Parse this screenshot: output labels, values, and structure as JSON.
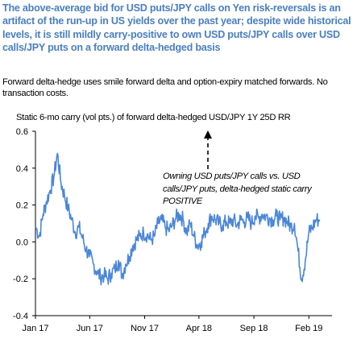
{
  "headline": "The above-average bid for USD puts/JPY calls on Yen risk-reversals is an artifact of the run-up in US yields over the past year; despite wide historical levels, it is still mildly carry-positive to own USD puts/JPY calls over USD calls/JPY puts on a forward delta-hedged basis",
  "subline": "Forward delta-hedge uses smile forward delta and option-expiry matched forwards. No transaction costs.",
  "colors": {
    "headline": "#4a7fbf",
    "line": "#4a86d8",
    "axis": "#000000"
  },
  "chart_data": {
    "type": "line",
    "title": "Static 6-mo carry (vol pts.) of forward delta-hedged USD/JPY 1Y 25D RR",
    "xlabel": "",
    "ylabel": "",
    "ylim": [
      -0.4,
      0.6
    ],
    "yticks": [
      -0.4,
      -0.2,
      0.0,
      0.2,
      0.4,
      0.6
    ],
    "ytick_labels": [
      "-0.4",
      "-0.2",
      "0.0",
      "0.2",
      "0.4",
      "0.6"
    ],
    "xlim": [
      "2017-01-01",
      "2019-03-15"
    ],
    "xticks": [
      "2017-01-01",
      "2017-06-01",
      "2017-11-01",
      "2018-04-01",
      "2018-09-01",
      "2019-02-01"
    ],
    "xtick_labels": [
      "Jan 17",
      "Jun 17",
      "Nov 17",
      "Apr 18",
      "Sep 18",
      "Feb 19"
    ],
    "grid": false,
    "legend": "none",
    "annotation": "Owning USD puts/JPY calls vs. USD calls/JPY puts, delta-hedged static carry POSITIVE",
    "series": [
      {
        "x": [
          "2017-01-02",
          "2017-01-12",
          "2017-01-22",
          "2017-02-01",
          "2017-02-11",
          "2017-02-21",
          "2017-03-03",
          "2017-03-13",
          "2017-03-23",
          "2017-04-02",
          "2017-04-12",
          "2017-04-22",
          "2017-05-02",
          "2017-05-12",
          "2017-05-22",
          "2017-06-01",
          "2017-06-11",
          "2017-06-21",
          "2017-07-01",
          "2017-07-11",
          "2017-07-21",
          "2017-07-31",
          "2017-08-10",
          "2017-08-20",
          "2017-08-30",
          "2017-09-09",
          "2017-09-19",
          "2017-09-29",
          "2017-10-09",
          "2017-10-19",
          "2017-10-29",
          "2017-11-08",
          "2017-11-18",
          "2017-11-28",
          "2017-12-08",
          "2017-12-18",
          "2017-12-28",
          "2018-01-07",
          "2018-01-17",
          "2018-01-27",
          "2018-02-06",
          "2018-02-16",
          "2018-02-26",
          "2018-03-08",
          "2018-03-18",
          "2018-03-28",
          "2018-04-07",
          "2018-04-17",
          "2018-04-27",
          "2018-05-07",
          "2018-05-17",
          "2018-05-27",
          "2018-06-06",
          "2018-06-16",
          "2018-06-26",
          "2018-07-06",
          "2018-07-16",
          "2018-07-26",
          "2018-08-05",
          "2018-08-15",
          "2018-08-25",
          "2018-09-04",
          "2018-09-14",
          "2018-09-24",
          "2018-10-04",
          "2018-10-14",
          "2018-10-24",
          "2018-11-03",
          "2018-11-13",
          "2018-11-23",
          "2018-12-03",
          "2018-12-13",
          "2018-12-23",
          "2019-01-02",
          "2019-01-12",
          "2019-01-22",
          "2019-02-01",
          "2019-02-11",
          "2019-02-21",
          "2019-03-03"
        ],
        "values": [
          0.08,
          0.03,
          0.15,
          0.22,
          0.28,
          0.35,
          0.48,
          0.32,
          0.25,
          0.18,
          0.12,
          0.05,
          0.08,
          0.02,
          -0.04,
          -0.08,
          -0.12,
          -0.16,
          -0.19,
          -0.18,
          -0.2,
          -0.17,
          -0.15,
          -0.1,
          -0.18,
          -0.12,
          -0.08,
          -0.02,
          0.01,
          0.03,
          0.05,
          0.04,
          0.01,
          0.03,
          0.1,
          0.12,
          0.08,
          0.06,
          0.09,
          0.13,
          0.15,
          0.12,
          0.05,
          0.1,
          0.03,
          -0.02,
          0.0,
          0.05,
          0.1,
          0.14,
          0.12,
          0.1,
          0.09,
          0.11,
          0.1,
          0.12,
          0.09,
          0.12,
          0.11,
          0.13,
          0.1,
          0.14,
          0.13,
          0.15,
          0.14,
          0.13,
          0.12,
          0.14,
          0.12,
          0.13,
          0.11,
          0.08,
          0.1,
          -0.05,
          -0.2,
          -0.1,
          0.05,
          0.08,
          0.12,
          0.12
        ]
      }
    ]
  }
}
